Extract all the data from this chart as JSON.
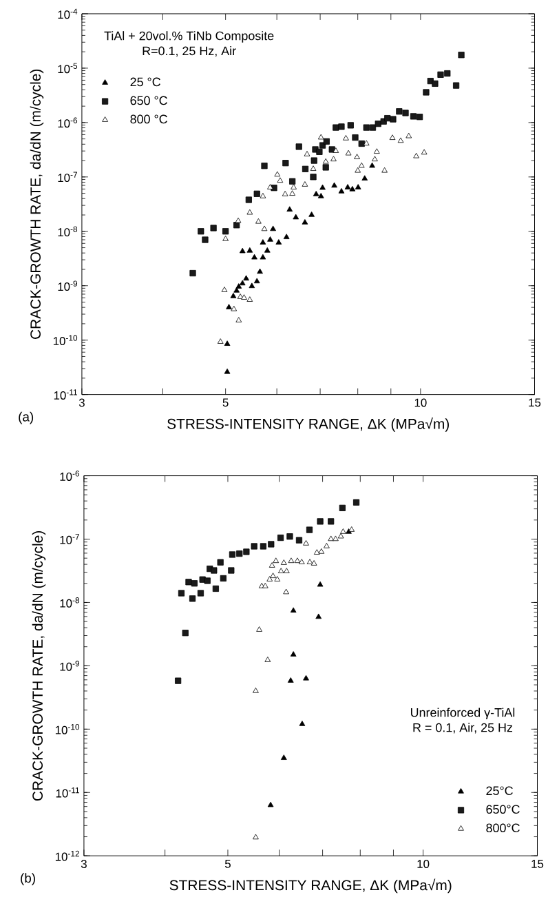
{
  "chart_data": [
    {
      "type": "scatter",
      "xlabel": "STRESS-INTENSITY RANGE, ΔK (MPa√m)",
      "ylabel": "CRACK-GROWTH RATE, da/dN (m/cycle)",
      "log": "xy",
      "legend": "top left",
      "annotations": [
        "TiAl + 20vol.% TiNb Composite",
        "R=0.1, 25 Hz, Air",
        "(a)"
      ],
      "xlim": [
        3,
        15
      ],
      "xticks": [
        3,
        {
          "value": 4,
          "label": null
        },
        5,
        {
          "value": 6,
          "label": null
        },
        {
          "value": 7,
          "label": null
        },
        {
          "value": 8,
          "label": null
        },
        {
          "value": 9,
          "label": null
        },
        10,
        15
      ],
      "ylim": [
        1e-11,
        0.0001
      ],
      "yticks": [
        {
          "value": 1e-11,
          "label": "10$^{-11}$"
        },
        {
          "value": 1e-10,
          "label": "10$^{-10}$"
        },
        {
          "value": 1e-09,
          "label": "10$^{-9}$"
        },
        {
          "value": 1e-08,
          "label": "10$^{-8}$"
        },
        {
          "value": 1e-07,
          "label": "10$^{-7}$"
        },
        {
          "value": 1e-06,
          "label": "10$^{-6}$"
        },
        {
          "value": 1e-05,
          "label": "10$^{-5}$"
        },
        {
          "value": 0.0001,
          "label": "10$^{-4}$"
        }
      ],
      "series": [
        {
          "name": "25 °C",
          "color": "#000000",
          "marker": "triangle",
          "x": [
            5.03,
            5.03,
            5.06,
            5.14,
            5.2,
            5.24,
            5.31,
            5.38,
            5.49,
            5.59,
            5.65,
            5.31,
            5.45,
            5.54,
            5.71,
            5.8,
            5.71,
            5.86,
            5.92,
            6.04,
            6.21,
            6.28,
            6.42,
            6.63,
            6.79,
            6.9,
            7.02,
            7.06,
            7.36,
            7.55,
            7.72,
            7.85,
            8.01,
            8.2,
            8.42
          ],
          "values": [
            2.6e-11,
            8.5e-11,
            4e-10,
            6.4e-10,
            8.1e-10,
            9.6e-10,
            1.1e-09,
            1.35e-09,
            9.8e-10,
            1.2e-09,
            1.8e-09,
            4.3e-09,
            4.4e-09,
            3.3e-09,
            3.3e-09,
            4.4e-09,
            6.2e-09,
            7e-09,
            1.1e-08,
            6.2e-09,
            7.8e-09,
            2.5e-08,
            1.8e-08,
            1.45e-08,
            2e-08,
            4.8e-08,
            4.4e-08,
            6.3e-08,
            6.9e-08,
            5.4e-08,
            6.4e-08,
            5.9e-08,
            6.4e-08,
            9.3e-08,
            1.6e-07
          ]
        },
        {
          "name": "650 °C",
          "color": "#1a1a1a",
          "marker": "square",
          "x": [
            4.45,
            4.58,
            4.65,
            4.79,
            5.0,
            5.2,
            5.43,
            5.59,
            5.74,
            5.94,
            6.19,
            6.34,
            6.49,
            6.64,
            6.83,
            6.85,
            6.88,
            6.98,
            7.06,
            7.16,
            7.14,
            7.3,
            7.4,
            7.55,
            7.8,
            7.93,
            8.11,
            8.25,
            8.44,
            8.6,
            8.77,
            8.89,
            9.07,
            9.27,
            9.48,
            9.75,
            9.97,
            10.2,
            10.36,
            10.53,
            10.74,
            11.0,
            11.35,
            11.56
          ],
          "values": [
            1.7e-09,
            1e-08,
            7e-09,
            1.15e-08,
            1e-08,
            1.3e-08,
            3.8e-08,
            4.9e-08,
            1.6e-07,
            6.3e-08,
            1.8e-07,
            8.3e-08,
            3.6e-07,
            1.4e-07,
            1e-07,
            2e-07,
            3.2e-07,
            2.9e-07,
            3.8e-07,
            4.5e-07,
            1.5e-07,
            3.2e-07,
            8.1e-07,
            8.4e-07,
            8.9e-07,
            5.3e-07,
            4.1e-07,
            8.1e-07,
            8.1e-07,
            9.5e-07,
            1.05e-06,
            1.2e-06,
            1.15e-06,
            1.6e-06,
            1.5e-06,
            1.3e-06,
            1.27e-06,
            3.6e-06,
            5.8e-06,
            5.2e-06,
            7.6e-06,
            8e-06,
            4.8e-06,
            1.75e-05
          ]
        },
        {
          "name": "800 °C",
          "color": "#ffffff",
          "marker": "triangle",
          "x": [
            4.91,
            4.98,
            5.0,
            5.15,
            5.24,
            5.27,
            5.34,
            5.45,
            5.23,
            5.45,
            5.62,
            5.71,
            5.74,
            5.86,
            6.01,
            6.07,
            6.18,
            6.34,
            6.37,
            6.63,
            6.68,
            6.83,
            7.02,
            7.14,
            7.34,
            7.4,
            7.67,
            7.74,
            7.98,
            8.0,
            8.11,
            8.25,
            8.5,
            8.56,
            8.8,
            9.05,
            9.32,
            9.59,
            9.85,
            10.13
          ],
          "values": [
            9.3e-11,
            8.3e-10,
            7.2e-09,
            3.7e-10,
            2.3e-10,
            6.2e-10,
            6e-10,
            5.5e-10,
            1.55e-08,
            2.2e-08,
            1.5e-08,
            4.4e-08,
            1.1e-08,
            6.4e-08,
            1.1e-07,
            8.5e-08,
            4.8e-08,
            4.9e-08,
            6.4e-08,
            7.2e-08,
            2.6e-07,
            1.4e-07,
            5.3e-07,
            1.9e-07,
            2.1e-07,
            3e-07,
            5.1e-07,
            2.7e-07,
            2.3e-07,
            1.3e-07,
            1.6e-07,
            4.1e-07,
            2.1e-07,
            2.9e-07,
            1.3e-07,
            5.2e-07,
            4.6e-07,
            5.6e-07,
            2.4e-07,
            2.8e-07
          ]
        }
      ]
    },
    {
      "type": "scatter",
      "xlabel": "STRESS-INTENSITY RANGE, ΔK (MPa√m)",
      "ylabel": "CRACK-GROWTH RATE, da/dN (m/cycle)",
      "log": "xy",
      "legend": "bottom right",
      "annotations": [
        "Unreinforced γ-TiAl",
        "R = 0.1, Air, 25 Hz",
        "(b)"
      ],
      "xlim": [
        3,
        15
      ],
      "xticks": [
        3,
        {
          "value": 4,
          "label": null
        },
        5,
        {
          "value": 6,
          "label": null
        },
        {
          "value": 7,
          "label": null
        },
        {
          "value": 8,
          "label": null
        },
        {
          "value": 9,
          "label": null
        },
        10,
        15
      ],
      "ylim": [
        1e-12,
        1e-06
      ],
      "yticks": [
        {
          "value": 1e-12,
          "label": "10$^{-12}$"
        },
        {
          "value": 1e-11,
          "label": "10$^{-11}$"
        },
        {
          "value": 1e-10,
          "label": "10$^{-10}$"
        },
        {
          "value": 1e-09,
          "label": "10$^{-9}$"
        },
        {
          "value": 1e-08,
          "label": "10$^{-8}$"
        },
        {
          "value": 1e-07,
          "label": "10$^{-7}$"
        },
        {
          "value": 1e-06,
          "label": "10$^{-6}$"
        }
      ],
      "series": [
        {
          "name": "25°C",
          "color": "#000000",
          "marker": "triangle",
          "x": [
            5.82,
            6.1,
            6.51,
            6.25,
            6.6,
            6.31,
            6.31,
            6.9,
            6.94,
            7.68
          ],
          "values": [
            6.3e-12,
            3.5e-11,
            1.2e-10,
            5.8e-10,
            6.3e-10,
            1.5e-09,
            7.4e-09,
            5.9e-09,
            1.9e-08,
            1.3e-07
          ]
        },
        {
          "name": "650°C",
          "color": "#1a1a1a",
          "marker": "square",
          "x": [
            4.19,
            4.24,
            4.3,
            4.35,
            4.41,
            4.44,
            4.54,
            4.57,
            4.65,
            4.69,
            4.79,
            4.76,
            4.87,
            4.92,
            5.06,
            5.08,
            5.21,
            5.34,
            5.49,
            5.67,
            5.83,
            6.03,
            6.23,
            6.44,
            6.68,
            6.94,
            7.21,
            7.51,
            7.89
          ],
          "values": [
            5.8e-10,
            1.4e-08,
            3.3e-09,
            2.1e-08,
            1.15e-08,
            2e-08,
            1.4e-08,
            2.3e-08,
            2.2e-08,
            3.4e-08,
            1.65e-08,
            3.2e-08,
            4.3e-08,
            2.4e-08,
            3.2e-08,
            5.7e-08,
            5.9e-08,
            6.3e-08,
            7.7e-08,
            7.7e-08,
            8.3e-08,
            1.05e-07,
            1.1e-07,
            9.6e-08,
            1.4e-07,
            1.9e-07,
            1.9e-07,
            3.1e-07,
            3.8e-07
          ]
        },
        {
          "name": "800°C",
          "color": "#ffffff",
          "marker": "triangle",
          "x": [
            5.52,
            5.52,
            5.76,
            5.59,
            6.15,
            5.64,
            5.71,
            5.8,
            5.87,
            5.96,
            5.85,
            5.93,
            6.04,
            6.1,
            6.16,
            6.26,
            6.4,
            6.5,
            6.6,
            6.69,
            6.79,
            6.86,
            6.97,
            7.1,
            7.21,
            7.33,
            7.47,
            7.53,
            7.76
          ],
          "values": [
            1.95e-12,
            4e-10,
            1.23e-09,
            3.7e-09,
            1.45e-08,
            1.8e-08,
            1.8e-08,
            2.3e-08,
            2.6e-08,
            2.3e-08,
            3.8e-08,
            4.5e-08,
            3.1e-08,
            4.2e-08,
            3.1e-08,
            4.5e-08,
            4.5e-08,
            4.3e-08,
            8.5e-08,
            4.3e-08,
            4.1e-08,
            6.1e-08,
            6.3e-08,
            7.7e-08,
            1e-07,
            1e-07,
            1.1e-07,
            1.3e-07,
            1.4e-07
          ]
        }
      ]
    }
  ]
}
